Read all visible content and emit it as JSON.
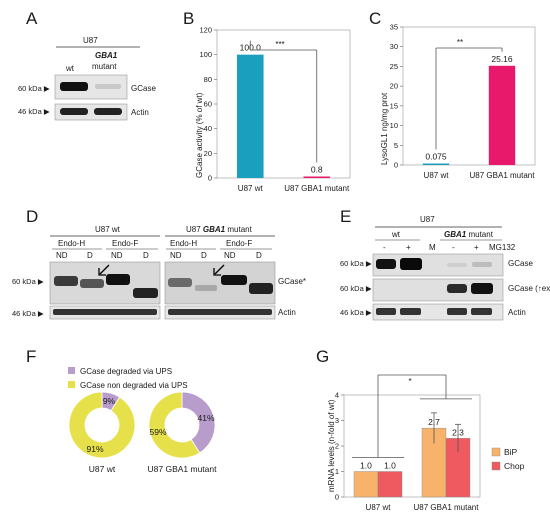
{
  "panels": {
    "A": {
      "letter": "A",
      "group": "U87",
      "col1": "wt",
      "col2a": "GBA1",
      "col2b": "mutant",
      "mw_top": "60 kDa ▶",
      "mw_bottom": "46 kDa ▶",
      "band_top": "GCase",
      "band_bottom": "Actin"
    },
    "B": {
      "letter": "B",
      "stars": "***"
    },
    "C": {
      "letter": "C",
      "stars": "**"
    },
    "D": {
      "letter": "D",
      "group1": "U87 wt",
      "group2a": "U87 ",
      "group2b": "GBA1",
      "group2c": " mutant",
      "endoH": "Endo-H",
      "endoF": "Endo-F",
      "nd": "ND",
      "d": "D",
      "mw_top": "60 kDa ▶",
      "mw_bottom": "46 kDa ▶",
      "band_top": "GCase*",
      "band_bottom": "Actin"
    },
    "E": {
      "letter": "E",
      "group": "U87",
      "wt": "wt",
      "mutant_a": "GBA1",
      "mutant_b": " mutant",
      "minus": "-",
      "plus": "+",
      "marker": "M",
      "treatment": "MG132",
      "mw1": "60 kDa ▶",
      "mw2": "60 kDa ▶",
      "mw3": "46 kDa ▶",
      "band1": "GCase",
      "band2": "GCase (↑exp)",
      "band3": "Actin"
    },
    "F": {
      "letter": "F",
      "legend1": "GCase degraded via UPS",
      "legend2": "GCase non degraded via UPS",
      "color_degraded": "#b79ccc",
      "color_non": "#e6e04a"
    },
    "G": {
      "letter": "G",
      "stars": "*"
    }
  },
  "chart_data": [
    {
      "panel": "B",
      "type": "bar",
      "categories": [
        "U87 wt",
        "U87 GBA1 mutant"
      ],
      "values": [
        100.0,
        0.8
      ],
      "value_labels": [
        "100.0",
        "0.8"
      ],
      "colors": [
        "#1b9fbf",
        "#e8196b"
      ],
      "ylabel": "GCase activity (% of wt)",
      "ylim": [
        0,
        120
      ],
      "yticks": [
        0,
        20,
        40,
        60,
        80,
        100,
        120
      ],
      "significance": "***"
    },
    {
      "panel": "C",
      "type": "bar",
      "categories": [
        "U87 wt",
        "U87 GBA1 mutant"
      ],
      "values": [
        0.075,
        25.16
      ],
      "value_labels": [
        "0.075",
        "25.16"
      ],
      "colors": [
        "#1b9fbf",
        "#e8196b"
      ],
      "ylabel": "LysoGL1 ng/mg prot",
      "ylim": [
        0,
        35
      ],
      "yticks": [
        0,
        5,
        10,
        15,
        20,
        25,
        30,
        35
      ],
      "significance": "**"
    },
    {
      "panel": "F",
      "type": "pie",
      "charts": [
        {
          "label": "U87 wt",
          "degraded": 9,
          "non_degraded": 91,
          "degraded_label": "9%",
          "non_degraded_label": "91%"
        },
        {
          "label": "U87 GBA1 mutant",
          "degraded": 41,
          "non_degraded": 59,
          "degraded_label": "41%",
          "non_degraded_label": "59%"
        }
      ],
      "legend": [
        "GCase degraded via UPS",
        "GCase non degraded via UPS"
      ]
    },
    {
      "panel": "G",
      "type": "bar",
      "categories": [
        "U87 wt",
        "U87 GBA1 mutant"
      ],
      "series": [
        {
          "name": "BiP",
          "values": [
            1.0,
            2.7
          ],
          "errors": [
            0.0,
            0.6
          ],
          "value_labels": [
            "1.0",
            "2.7"
          ],
          "color": "#f7b26b"
        },
        {
          "name": "Chop",
          "values": [
            1.0,
            2.3
          ],
          "errors": [
            0.0,
            0.55
          ],
          "value_labels": [
            "1.0",
            "2.3"
          ],
          "color": "#ee5a60"
        }
      ],
      "ylabel": "mRNA levels (n-fold of wt)",
      "ylim": [
        0,
        4
      ],
      "yticks": [
        0,
        1,
        2,
        3,
        4
      ],
      "legend_position": "right",
      "significance": "*"
    }
  ]
}
